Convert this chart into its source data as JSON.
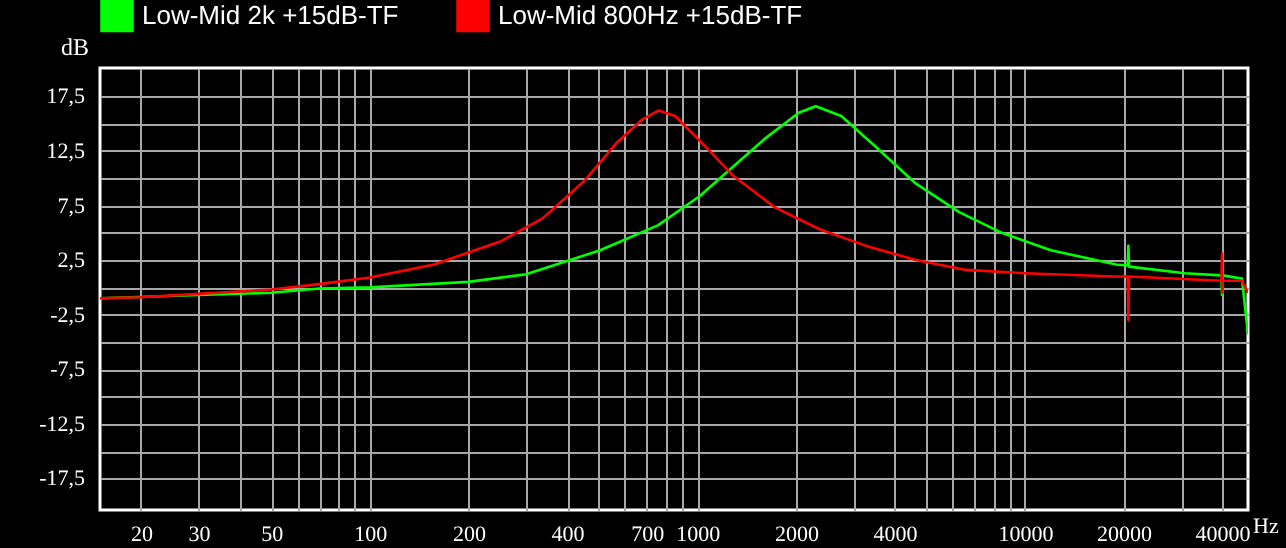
{
  "chart_data": {
    "type": "line",
    "xlabel": "Hz",
    "ylabel": "dB",
    "log": "x",
    "grid": true,
    "legend": "top left",
    "line_style": "solid",
    "xlim": [
      15,
      48000
    ],
    "ylim": [
      -20.4,
      20.1
    ],
    "xticks": [
      20,
      30,
      {
        "value": 40,
        "label": null
      },
      50,
      {
        "value": 60,
        "label": null
      },
      {
        "value": 70,
        "label": null
      },
      {
        "value": 80,
        "label": null
      },
      {
        "value": 90,
        "label": null
      },
      100,
      200,
      {
        "value": 300,
        "label": null
      },
      400,
      {
        "value": 500,
        "label": null
      },
      {
        "value": 600,
        "label": null
      },
      700,
      {
        "value": 800,
        "label": null
      },
      {
        "value": 900,
        "label": null
      },
      1000,
      2000,
      {
        "value": 3000,
        "label": null
      },
      4000,
      {
        "value": 5000,
        "label": null
      },
      {
        "value": 6000,
        "label": null
      },
      {
        "value": 7000,
        "label": null
      },
      {
        "value": 8000,
        "label": null
      },
      {
        "value": 9000,
        "label": null
      },
      10000,
      20000,
      {
        "value": 30000,
        "label": null
      },
      40000
    ],
    "yticks": [
      {
        "value": 17.5,
        "label": "17,5"
      },
      {
        "value": 15,
        "label": null
      },
      {
        "value": 12.5,
        "label": "12,5"
      },
      {
        "value": 10,
        "label": null
      },
      {
        "value": 7.5,
        "label": "7,5"
      },
      {
        "value": 5,
        "label": null
      },
      {
        "value": 2.5,
        "label": "2,5"
      },
      {
        "value": 0,
        "label": null
      },
      {
        "value": -2.5,
        "label": "-2,5"
      },
      {
        "value": -5,
        "label": null
      },
      {
        "value": -7.5,
        "label": "-7,5"
      },
      {
        "value": -10,
        "label": null
      },
      {
        "value": -12.5,
        "label": "-12,5"
      },
      {
        "value": -15,
        "label": null
      },
      {
        "value": -17.5,
        "label": "-17,5"
      }
    ],
    "series": [
      {
        "name": "Low-Mid 2k +15dB-TF",
        "color": "#00ff00",
        "x": [
          15,
          30,
          50,
          70,
          100,
          200,
          300,
          505,
          760,
          1020,
          1290,
          1620,
          2040,
          2300,
          2750,
          3470,
          4650,
          6300,
          8500,
          12000,
          19000,
          20600,
          20700,
          20800,
          30800,
          39800,
          40000,
          40200,
          46000,
          48000
        ],
        "values": [
          -1.0,
          -0.7,
          -0.5,
          -0.1,
          0.0,
          0.5,
          1.2,
          3.4,
          5.7,
          8.4,
          11.1,
          13.7,
          16.0,
          16.6,
          15.7,
          13.0,
          9.5,
          6.9,
          5.0,
          3.4,
          2.1,
          2.0,
          3.8,
          1.9,
          1.3,
          1.1,
          -0.7,
          1.1,
          0.8,
          -4.3
        ]
      },
      {
        "name": "Low-Mid 800Hz +15dB-TF",
        "color": "#ff0000",
        "x": [
          15,
          20,
          30,
          50,
          70,
          100,
          157,
          250,
          336,
          450,
          565,
          680,
          760,
          855,
          1020,
          1290,
          1730,
          2370,
          3280,
          4650,
          6600,
          10000,
          18900,
          20600,
          20700,
          20800,
          39800,
          40000,
          40100,
          40200,
          46000,
          48000
        ],
        "values": [
          -1.0,
          -0.9,
          -0.6,
          -0.2,
          0.3,
          0.9,
          2.1,
          4.2,
          6.3,
          9.7,
          13.2,
          15.4,
          16.2,
          15.7,
          13.4,
          10.2,
          7.3,
          5.3,
          3.8,
          2.5,
          1.6,
          1.3,
          1.0,
          1.0,
          -3.0,
          1.0,
          0.6,
          3.1,
          -0.5,
          0.6,
          0.6,
          -0.5
        ]
      }
    ]
  }
}
